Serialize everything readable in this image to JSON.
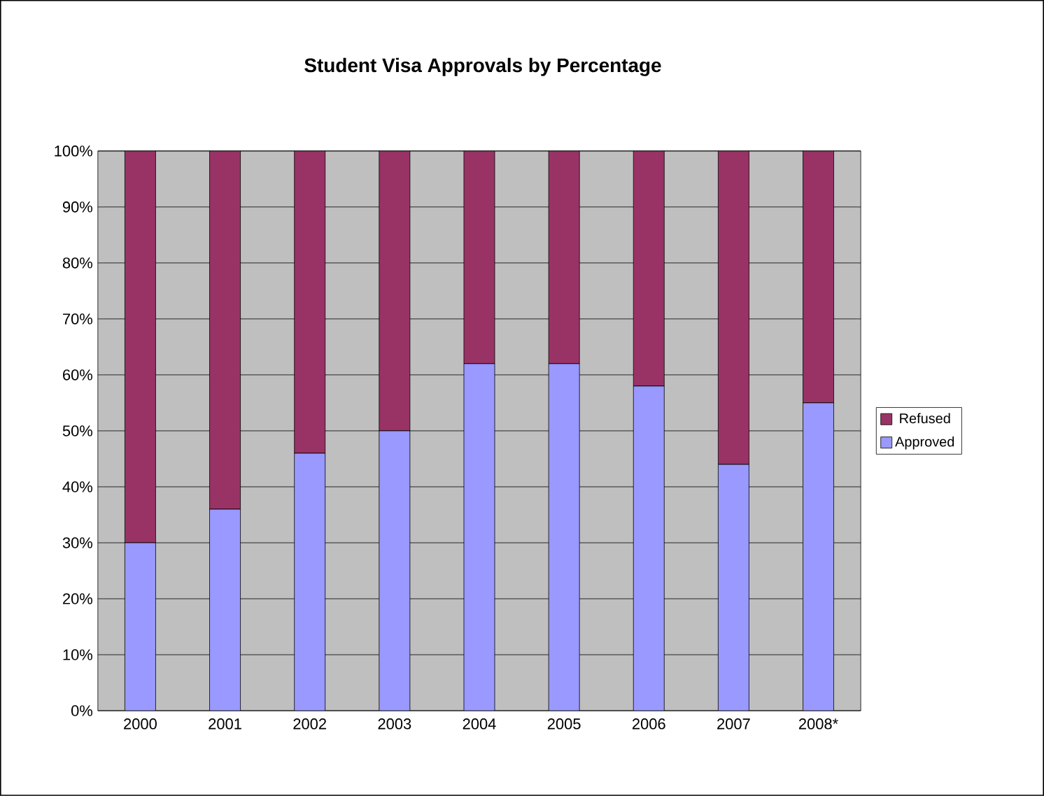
{
  "chart_data": {
    "type": "bar",
    "title": "Student Visa Approvals by Percentage",
    "categories": [
      "2000",
      "2001",
      "2002",
      "2003",
      "2004",
      "2005",
      "2006",
      "2007",
      "2008*"
    ],
    "stacked": true,
    "series": [
      {
        "name": "Approved",
        "color": "#9999ff",
        "values": [
          30,
          36,
          46,
          50,
          62,
          62,
          58,
          44,
          55
        ]
      },
      {
        "name": "Refused",
        "color": "#993366",
        "values": [
          70,
          64,
          54,
          50,
          38,
          38,
          42,
          56,
          45
        ]
      }
    ],
    "ylim": [
      0,
      100
    ],
    "yticks": [
      {
        "value": 0,
        "label": "0%"
      },
      {
        "value": 10,
        "label": "10%"
      },
      {
        "value": 20,
        "label": "20%"
      },
      {
        "value": 30,
        "label": "30%"
      },
      {
        "value": 40,
        "label": "40%"
      },
      {
        "value": 50,
        "label": "50%"
      },
      {
        "value": 60,
        "label": "60%"
      },
      {
        "value": 70,
        "label": "70%"
      },
      {
        "value": 80,
        "label": "80%"
      },
      {
        "value": 90,
        "label": "90%"
      },
      {
        "value": 100,
        "label": "100%"
      }
    ],
    "grid": "y",
    "legend": "right"
  }
}
